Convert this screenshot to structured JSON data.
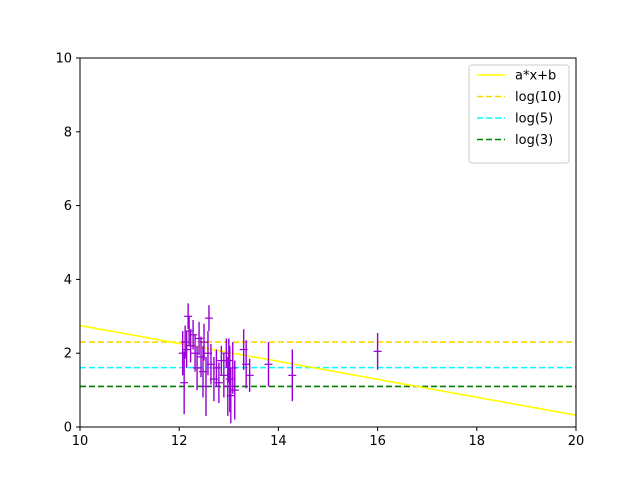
{
  "chart_data": {
    "type": "scatter",
    "title": "",
    "xlabel": "",
    "ylabel": "",
    "xlim": [
      10,
      20
    ],
    "ylim": [
      0,
      10
    ],
    "x_ticks": [
      "10",
      "12",
      "14",
      "16",
      "18",
      "20"
    ],
    "y_ticks": [
      "0",
      "2",
      "4",
      "6",
      "8",
      "10"
    ],
    "grid": false,
    "legend_position": "top-right",
    "fit_line": {
      "name": "a*x+b",
      "color": "#ffff00",
      "style": "solid",
      "points": [
        [
          10,
          2.75
        ],
        [
          20,
          0.32
        ]
      ]
    },
    "reference_lines": [
      {
        "name": "log(10)",
        "y": 2.303,
        "color": "#ffd700",
        "style": "dashed"
      },
      {
        "name": "log(5)",
        "y": 1.609,
        "color": "#00ffff",
        "style": "dashed"
      },
      {
        "name": "log(3)",
        "y": 1.099,
        "color": "#008000",
        "style": "dashed"
      }
    ],
    "points_color": "#9400d3",
    "points": [
      {
        "x": 12.07,
        "y": 2.0,
        "err": 0.6
      },
      {
        "x": 12.1,
        "y": 1.2,
        "err": 0.85
      },
      {
        "x": 12.12,
        "y": 2.3,
        "err": 0.45
      },
      {
        "x": 12.15,
        "y": 2.1,
        "err": 0.5
      },
      {
        "x": 12.18,
        "y": 3.0,
        "err": 0.35
      },
      {
        "x": 12.2,
        "y": 2.6,
        "err": 0.4
      },
      {
        "x": 12.23,
        "y": 2.2,
        "err": 0.45
      },
      {
        "x": 12.28,
        "y": 2.5,
        "err": 0.4
      },
      {
        "x": 12.32,
        "y": 2.0,
        "err": 0.5
      },
      {
        "x": 12.36,
        "y": 1.6,
        "err": 0.6
      },
      {
        "x": 12.4,
        "y": 2.4,
        "err": 0.45
      },
      {
        "x": 12.44,
        "y": 1.9,
        "err": 0.55
      },
      {
        "x": 12.48,
        "y": 1.5,
        "err": 0.7
      },
      {
        "x": 12.5,
        "y": 2.3,
        "err": 0.5
      },
      {
        "x": 12.54,
        "y": 1.1,
        "err": 0.8
      },
      {
        "x": 12.58,
        "y": 2.0,
        "err": 0.6
      },
      {
        "x": 12.6,
        "y": 2.95,
        "err": 0.35
      },
      {
        "x": 12.64,
        "y": 1.7,
        "err": 0.55
      },
      {
        "x": 12.7,
        "y": 1.3,
        "err": 0.6
      },
      {
        "x": 12.75,
        "y": 1.6,
        "err": 0.5
      },
      {
        "x": 12.8,
        "y": 1.2,
        "err": 0.55
      },
      {
        "x": 12.85,
        "y": 1.8,
        "err": 0.4
      },
      {
        "x": 12.9,
        "y": 1.4,
        "err": 0.6
      },
      {
        "x": 12.95,
        "y": 2.0,
        "err": 0.4
      },
      {
        "x": 12.98,
        "y": 1.1,
        "err": 0.8
      },
      {
        "x": 13.0,
        "y": 1.8,
        "err": 0.6
      },
      {
        "x": 13.02,
        "y": 1.3,
        "err": 0.9
      },
      {
        "x": 13.04,
        "y": 0.85,
        "err": 0.75
      },
      {
        "x": 13.08,
        "y": 1.6,
        "err": 0.7
      },
      {
        "x": 13.12,
        "y": 1.0,
        "err": 0.8
      },
      {
        "x": 13.3,
        "y": 2.1,
        "err": 0.55
      },
      {
        "x": 13.35,
        "y": 1.7,
        "err": 0.65
      },
      {
        "x": 13.42,
        "y": 1.4,
        "err": 0.45
      },
      {
        "x": 13.8,
        "y": 1.7,
        "err": 0.6
      },
      {
        "x": 14.28,
        "y": 1.4,
        "err": 0.7
      },
      {
        "x": 16.0,
        "y": 2.05,
        "err": 0.5
      }
    ]
  }
}
